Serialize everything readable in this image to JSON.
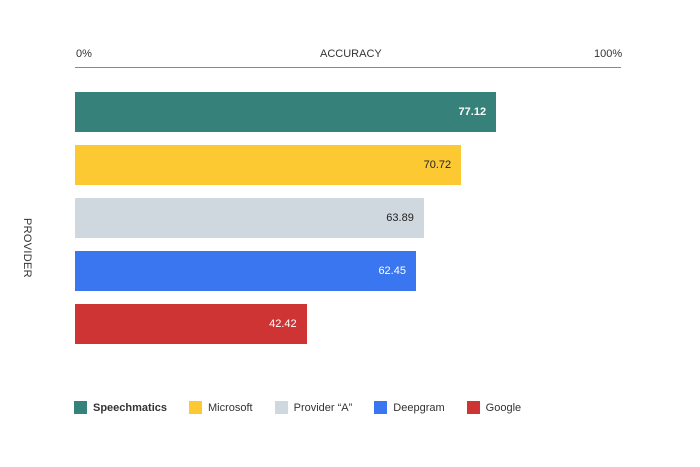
{
  "chart_data": {
    "type": "bar",
    "orientation": "horizontal",
    "title": "",
    "xlabel": "ACCURACY",
    "ylabel": "PROVIDER",
    "xlim": [
      0,
      100
    ],
    "x_tick_labels": [
      "0%",
      "100%"
    ],
    "grid": false,
    "legend_position": "bottom",
    "categories": [
      "Speechmatics",
      "Microsoft",
      "Provider “A”",
      "Deepgram",
      "Google"
    ],
    "values": [
      77.12,
      70.72,
      63.89,
      62.45,
      42.42
    ],
    "value_labels": [
      "77.12",
      "70.72",
      "63.89",
      "62.45",
      "42.42"
    ],
    "colors": [
      "#36817a",
      "#fcc933",
      "#d0d8df",
      "#3a76f0",
      "#cf3434"
    ],
    "label_colors": [
      "#ffffff",
      "#222222",
      "#222222",
      "#ffffff",
      "#ffffff"
    ]
  },
  "axis": {
    "min_label": "0%",
    "title": "ACCURACY",
    "max_label": "100%",
    "ylabel": "PROVIDER"
  },
  "legend": [
    {
      "label": "Speechmatics",
      "color": "#36817a",
      "bold": true
    },
    {
      "label": "Microsoft",
      "color": "#fcc933"
    },
    {
      "label": "Provider “A”",
      "color": "#d0d8df"
    },
    {
      "label": "Deepgram",
      "color": "#3a76f0"
    },
    {
      "label": "Google",
      "color": "#cf3434"
    }
  ]
}
